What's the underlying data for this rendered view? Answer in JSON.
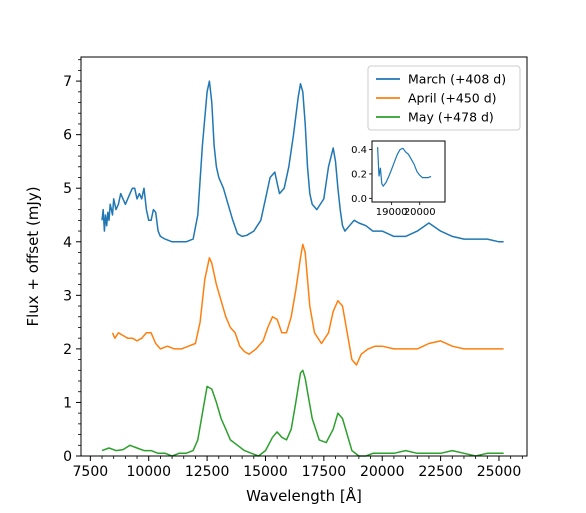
{
  "chart_data": {
    "type": "line",
    "title": "",
    "xlabel": "Wavelength [Å]",
    "ylabel": "Flux + offset (mJy)",
    "xlim": [
      7100,
      26200
    ],
    "ylim": [
      0,
      7.45
    ],
    "xticks": [
      7500,
      10000,
      12500,
      15000,
      17500,
      20000,
      22500,
      25000
    ],
    "yticks": [
      0,
      1,
      2,
      3,
      4,
      5,
      6,
      7
    ],
    "grid": false,
    "legend_position": "top-right",
    "series": [
      {
        "name": "March (+408 d)",
        "color": "#1f77b4",
        "offset": 4,
        "x": [
          8000,
          8050,
          8100,
          8150,
          8200,
          8250,
          8300,
          8350,
          8400,
          8450,
          8500,
          8600,
          8700,
          8800,
          8900,
          9000,
          9100,
          9200,
          9300,
          9400,
          9500,
          9600,
          9700,
          9800,
          9900,
          10000,
          10100,
          10200,
          10300,
          10400,
          10500,
          10700,
          11000,
          11300,
          11600,
          11900,
          12100,
          12300,
          12500,
          12600,
          12700,
          12800,
          12900,
          13000,
          13200,
          13400,
          13600,
          13800,
          14000,
          14200,
          14500,
          14800,
          15000,
          15200,
          15400,
          15500,
          15600,
          15800,
          16000,
          16200,
          16400,
          16500,
          16600,
          16700,
          16800,
          16900,
          17000,
          17200,
          17500,
          17700,
          17900,
          18000,
          18100,
          18200,
          18300,
          18400,
          18600,
          18800,
          19000,
          19300,
          19600,
          20000,
          20500,
          21000,
          21500,
          22000,
          22500,
          23000,
          23500,
          24000,
          24500,
          25000,
          25200
        ],
        "y": [
          4.4,
          4.6,
          4.2,
          4.5,
          4.3,
          4.55,
          4.4,
          4.7,
          4.6,
          4.5,
          4.8,
          4.6,
          4.7,
          4.9,
          4.8,
          4.7,
          4.8,
          4.9,
          5.0,
          5.0,
          4.8,
          4.9,
          4.8,
          5.0,
          4.6,
          4.4,
          4.4,
          4.6,
          4.55,
          4.2,
          4.1,
          4.05,
          4.0,
          4.0,
          4.0,
          4.05,
          4.5,
          5.8,
          6.8,
          7.0,
          6.6,
          5.8,
          5.4,
          5.2,
          5.0,
          4.7,
          4.4,
          4.15,
          4.1,
          4.12,
          4.2,
          4.4,
          4.8,
          5.2,
          5.3,
          5.1,
          4.9,
          5.0,
          5.4,
          6.0,
          6.7,
          6.95,
          6.8,
          6.2,
          5.4,
          4.9,
          4.7,
          4.6,
          4.8,
          5.4,
          5.75,
          5.5,
          5.0,
          4.6,
          4.3,
          4.2,
          4.3,
          4.4,
          4.35,
          4.3,
          4.2,
          4.2,
          4.1,
          4.1,
          4.2,
          4.35,
          4.2,
          4.1,
          4.05,
          4.05,
          4.05,
          4.0,
          4.0
        ]
      },
      {
        "name": "April (+450 d)",
        "color": "#ff7f0e",
        "offset": 2,
        "x": [
          8450,
          8550,
          8700,
          8900,
          9100,
          9300,
          9500,
          9700,
          9900,
          10100,
          10300,
          10500,
          10800,
          11100,
          11400,
          11700,
          12000,
          12200,
          12400,
          12600,
          12700,
          12900,
          13100,
          13300,
          13500,
          13700,
          13900,
          14100,
          14300,
          14600,
          14900,
          15100,
          15300,
          15500,
          15700,
          15900,
          16100,
          16300,
          16500,
          16600,
          16700,
          16800,
          16900,
          17100,
          17400,
          17700,
          17900,
          18100,
          18300,
          18500,
          18700,
          18900,
          19100,
          19400,
          19700,
          20000,
          20500,
          21000,
          21500,
          22000,
          22500,
          23000,
          23500,
          24000,
          24500,
          25000,
          25200
        ],
        "y": [
          2.3,
          2.2,
          2.3,
          2.25,
          2.2,
          2.2,
          2.15,
          2.2,
          2.3,
          2.3,
          2.1,
          2.0,
          2.05,
          2.0,
          2.0,
          2.05,
          2.1,
          2.5,
          3.3,
          3.7,
          3.6,
          3.2,
          2.9,
          2.6,
          2.4,
          2.3,
          2.05,
          1.95,
          1.9,
          2.0,
          2.15,
          2.4,
          2.6,
          2.55,
          2.3,
          2.3,
          2.6,
          3.1,
          3.7,
          3.95,
          3.8,
          3.3,
          2.8,
          2.3,
          2.1,
          2.3,
          2.7,
          2.9,
          2.8,
          2.3,
          1.8,
          1.7,
          1.9,
          2.0,
          2.05,
          2.05,
          2.0,
          2.0,
          2.0,
          2.1,
          2.15,
          2.05,
          2.0,
          2.0,
          2.0,
          2.0,
          2.0
        ]
      },
      {
        "name": "May (+478 d)",
        "color": "#2ca02c",
        "offset": 0,
        "x": [
          8000,
          8300,
          8600,
          8900,
          9200,
          9500,
          9800,
          10100,
          10400,
          10700,
          11000,
          11300,
          11600,
          11900,
          12100,
          12300,
          12500,
          12700,
          12900,
          13100,
          13300,
          13500,
          13800,
          14100,
          14400,
          14700,
          15000,
          15300,
          15500,
          15700,
          15900,
          16100,
          16300,
          16500,
          16600,
          16700,
          16800,
          17000,
          17300,
          17600,
          17900,
          18100,
          18300,
          18500,
          18700,
          19000,
          19300,
          19600,
          20000,
          20500,
          21000,
          21500,
          22000,
          22500,
          23000,
          23500,
          24000,
          24500,
          25000,
          25200
        ],
        "y": [
          0.1,
          0.15,
          0.1,
          0.12,
          0.2,
          0.15,
          0.1,
          0.1,
          0.05,
          0.05,
          0.0,
          0.05,
          0.05,
          0.1,
          0.3,
          0.8,
          1.3,
          1.25,
          1.0,
          0.7,
          0.5,
          0.3,
          0.2,
          0.1,
          0.05,
          0.0,
          0.1,
          0.35,
          0.45,
          0.35,
          0.3,
          0.5,
          1.0,
          1.55,
          1.6,
          1.45,
          1.2,
          0.7,
          0.3,
          0.25,
          0.5,
          0.8,
          0.7,
          0.4,
          0.1,
          0.0,
          0.0,
          0.05,
          0.05,
          0.05,
          0.1,
          0.05,
          0.05,
          0.05,
          0.1,
          0.05,
          0.0,
          0.05,
          0.05,
          0.05
        ]
      }
    ],
    "inset": {
      "series_name": "March (+408 d)",
      "color": "#1f77b4",
      "xlim": [
        18300,
        20900
      ],
      "ylim": [
        -0.03,
        0.47
      ],
      "xticks": [
        19000,
        20000
      ],
      "yticks": [
        0.0,
        0.2,
        0.4
      ],
      "ytick_labels": [
        "0.0",
        "0.2",
        "0.4"
      ],
      "x": [
        18500,
        18550,
        18600,
        18650,
        18700,
        18800,
        18900,
        19000,
        19100,
        19200,
        19300,
        19400,
        19500,
        19600,
        19700,
        19800,
        19900,
        20000,
        20100,
        20200,
        20300,
        20400
      ],
      "y": [
        0.42,
        0.18,
        0.25,
        0.12,
        0.1,
        0.13,
        0.18,
        0.24,
        0.3,
        0.36,
        0.4,
        0.41,
        0.38,
        0.36,
        0.32,
        0.28,
        0.22,
        0.19,
        0.17,
        0.17,
        0.17,
        0.18
      ]
    }
  }
}
